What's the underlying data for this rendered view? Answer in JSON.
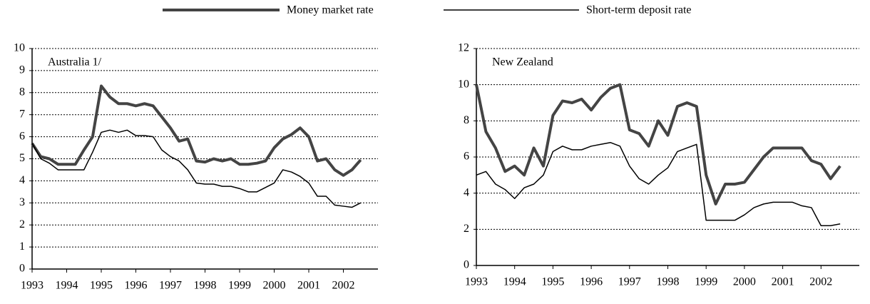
{
  "chart_data": [
    {
      "type": "line",
      "title": "Australia 1/",
      "x": [
        1993,
        1993.25,
        1993.5,
        1993.75,
        1994,
        1994.25,
        1994.5,
        1994.75,
        1995,
        1995.25,
        1995.5,
        1995.75,
        1996,
        1996.25,
        1996.5,
        1996.75,
        1997,
        1997.25,
        1997.5,
        1997.75,
        1998,
        1998.25,
        1998.5,
        1998.75,
        1999,
        1999.25,
        1999.5,
        1999.75,
        2000,
        2000.25,
        2000.5,
        2000.75,
        2001,
        2001.25,
        2001.5,
        2001.75,
        2002,
        2002.25,
        2002.5
      ],
      "series": [
        {
          "name": "Money market rate",
          "color": "#444444",
          "line_width": 4,
          "values": [
            5.7,
            5.1,
            5.0,
            4.75,
            4.75,
            4.75,
            5.4,
            6.0,
            8.3,
            7.8,
            7.5,
            7.5,
            7.4,
            7.5,
            7.4,
            6.9,
            6.4,
            5.8,
            5.9,
            4.9,
            4.85,
            5.0,
            4.9,
            5.0,
            4.75,
            4.75,
            4.8,
            4.9,
            5.5,
            5.9,
            6.1,
            6.4,
            6.0,
            4.9,
            5.0,
            4.5,
            4.25,
            4.5,
            4.95
          ]
        },
        {
          "name": "Short-term deposit rate",
          "color": "#000000",
          "line_width": 1.5,
          "values": [
            5.7,
            5.0,
            4.8,
            4.5,
            4.5,
            4.5,
            4.5,
            5.3,
            6.2,
            6.3,
            6.2,
            6.3,
            6.05,
            6.05,
            6.0,
            5.4,
            5.1,
            4.9,
            4.5,
            3.9,
            3.85,
            3.85,
            3.75,
            3.75,
            3.65,
            3.5,
            3.5,
            3.7,
            3.9,
            4.5,
            4.4,
            4.2,
            3.9,
            3.3,
            3.3,
            2.9,
            2.85,
            2.8,
            3.0
          ]
        }
      ],
      "xlim": [
        1993,
        2003
      ],
      "xticks": [
        1993,
        1994,
        1995,
        1996,
        1997,
        1998,
        1999,
        2000,
        2001,
        2002
      ],
      "ylim": [
        0,
        10
      ],
      "yticks": [
        0,
        1,
        2,
        3,
        4,
        5,
        6,
        7,
        8,
        9,
        10
      ],
      "grid": true
    },
    {
      "type": "line",
      "title": "New Zealand",
      "x": [
        1993,
        1993.25,
        1993.5,
        1993.75,
        1994,
        1994.25,
        1994.5,
        1994.75,
        1995,
        1995.25,
        1995.5,
        1995.75,
        1996,
        1996.25,
        1996.5,
        1996.75,
        1997,
        1997.25,
        1997.5,
        1997.75,
        1998,
        1998.25,
        1998.5,
        1998.75,
        1999,
        1999.25,
        1999.5,
        1999.75,
        2000,
        2000.25,
        2000.5,
        2000.75,
        2001,
        2001.25,
        2001.5,
        2001.75,
        2002,
        2002.25,
        2002.5
      ],
      "series": [
        {
          "name": "Money market rate",
          "color": "#444444",
          "line_width": 4,
          "values": [
            10.0,
            7.4,
            6.5,
            5.2,
            5.5,
            5.0,
            6.5,
            5.5,
            8.3,
            9.1,
            9.0,
            9.2,
            8.6,
            9.3,
            9.8,
            10.0,
            7.5,
            7.3,
            6.6,
            8.0,
            7.2,
            8.8,
            9.0,
            8.8,
            5.0,
            3.4,
            4.5,
            4.5,
            4.6,
            5.3,
            6.0,
            6.5,
            6.5,
            6.5,
            6.5,
            5.8,
            5.6,
            4.8,
            5.5
          ]
        },
        {
          "name": "Short-term deposit rate",
          "color": "#000000",
          "line_width": 1.5,
          "values": [
            5.0,
            5.2,
            4.5,
            4.2,
            3.7,
            4.3,
            4.5,
            5.0,
            6.3,
            6.6,
            6.4,
            6.4,
            6.6,
            6.7,
            6.8,
            6.6,
            5.5,
            4.8,
            4.5,
            5.0,
            5.4,
            6.3,
            6.5,
            6.7,
            2.5,
            2.5,
            2.5,
            2.5,
            2.8,
            3.2,
            3.4,
            3.5,
            3.5,
            3.5,
            3.3,
            3.2,
            2.2,
            2.2,
            2.3
          ]
        }
      ],
      "xlim": [
        1993,
        2003
      ],
      "xticks": [
        1993,
        1994,
        1995,
        1996,
        1997,
        1998,
        1999,
        2000,
        2001,
        2002
      ],
      "ylim": [
        0,
        12
      ],
      "yticks": [
        0,
        2,
        4,
        6,
        8,
        10,
        12
      ],
      "grid": true
    }
  ]
}
